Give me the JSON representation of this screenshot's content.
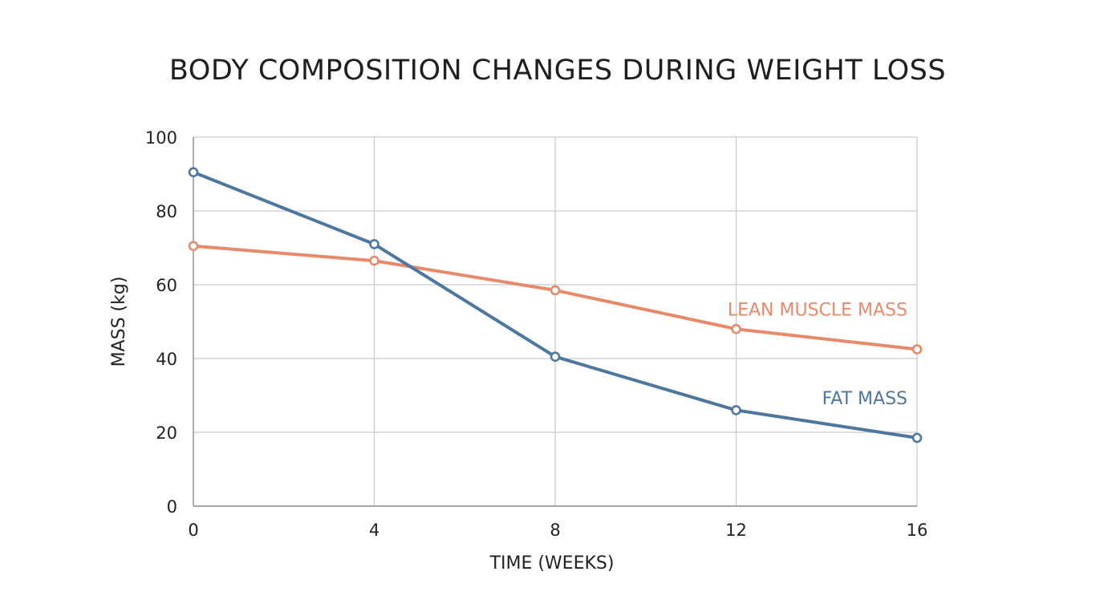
{
  "chart_data": {
    "type": "line",
    "title": "BODY COMPOSITION CHANGES DURING WEIGHT LOSS",
    "xlabel": "TIME (WEEKS)",
    "ylabel": "MASS (kg)",
    "x": [
      0,
      4,
      8,
      12,
      16
    ],
    "x_ticks": [
      "0",
      "4",
      "8",
      "12",
      "16"
    ],
    "y_ticks": [
      "0",
      "20",
      "40",
      "60",
      "80",
      "100"
    ],
    "xlim": [
      0,
      16
    ],
    "ylim": [
      0,
      100
    ],
    "grid": true,
    "series": [
      {
        "name": "LEAN MUSCLE MASS",
        "values": [
          70.5,
          66.5,
          58.5,
          48,
          42.5
        ],
        "color": "#E8896A"
      },
      {
        "name": "FAT MASS",
        "values": [
          90.5,
          71,
          40.5,
          26,
          18.5
        ],
        "color": "#4E77A0"
      }
    ]
  }
}
